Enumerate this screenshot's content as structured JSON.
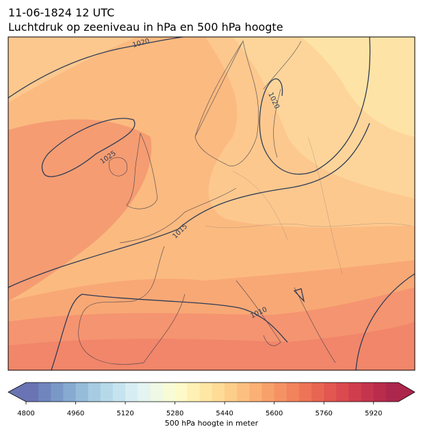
{
  "header": {
    "time": "11-06-1824 12 UTC",
    "title": "Luchtdruk op zeeniveau in hPa en 500 hPa hoogte"
  },
  "map": {
    "isobar_labels": [
      "1020",
      "1020",
      "1025",
      "1015",
      "1010"
    ]
  },
  "colorbar": {
    "label": "500 hPa hoogte in meter",
    "range": [
      4800,
      6000
    ],
    "ticks": [
      4800,
      4960,
      5120,
      5280,
      5440,
      5600,
      5760,
      5920
    ],
    "colors": [
      "#6a74b4",
      "#7085bd",
      "#7a98c7",
      "#86aad1",
      "#95bcd9",
      "#a6cce2",
      "#b6d9e9",
      "#c6e4ef",
      "#d6eef3",
      "#e3f4f1",
      "#eef8e4",
      "#f7fbd6",
      "#fdf9c8",
      "#fff0b4",
      "#fee6a4",
      "#fedb96",
      "#fdcd8a",
      "#fcbf7f",
      "#fbb074",
      "#f8a06a",
      "#f59263",
      "#f2835c",
      "#ee7457",
      "#e86553",
      "#e2574f",
      "#da4a4e",
      "#d03e4d",
      "#c5344d",
      "#b92c4c",
      "#ad264b"
    ]
  }
}
